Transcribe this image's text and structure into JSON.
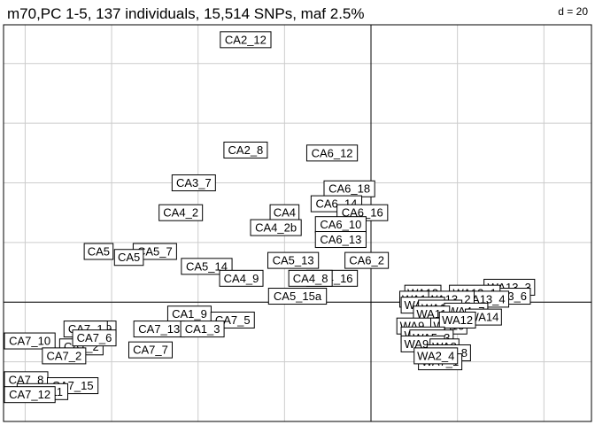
{
  "chart_data": {
    "type": "scatter",
    "title": "m70,PC 1-5, 137 individuals, 15,514 SNPs, maf 2.5%",
    "grid_label": "d = 20",
    "grid": true,
    "xlim": [
      -85,
      51
    ],
    "ylim": [
      -40,
      93
    ],
    "points": [
      {
        "label": "CA2_12",
        "x": -29,
        "y": 88
      },
      {
        "label": "CA2_8",
        "x": -29,
        "y": 51
      },
      {
        "label": "CA6_12",
        "x": -9,
        "y": 50
      },
      {
        "label": "CA3_7",
        "x": -41,
        "y": 40
      },
      {
        "label": "CA6_18",
        "x": -5,
        "y": 38
      },
      {
        "label": "CA6_14",
        "x": -8,
        "y": 33
      },
      {
        "label": "CA4_2",
        "x": -44,
        "y": 30
      },
      {
        "label": "CA4",
        "x": -20,
        "y": 30
      },
      {
        "label": "CA6_16",
        "x": -2,
        "y": 30
      },
      {
        "label": "CA6_10",
        "x": -7,
        "y": 26
      },
      {
        "label": "CA4_2b",
        "x": -22,
        "y": 25
      },
      {
        "label": "CA6_13",
        "x": -7,
        "y": 21
      },
      {
        "label": "CA5",
        "x": -63,
        "y": 17
      },
      {
        "label": "CA5_7",
        "x": -50,
        "y": 17
      },
      {
        "label": "CA5",
        "x": -56,
        "y": 15
      },
      {
        "label": "CA5_13",
        "x": -18,
        "y": 14
      },
      {
        "label": "CA6_2",
        "x": -1,
        "y": 14
      },
      {
        "label": "CA5_14",
        "x": -38,
        "y": 12
      },
      {
        "label": "CA4_9",
        "x": -30,
        "y": 8
      },
      {
        "label": "CA4_16",
        "x": -9,
        "y": 8
      },
      {
        "label": "CA4_8",
        "x": -14,
        "y": 8
      },
      {
        "label": "CA5_15a",
        "x": -17,
        "y": 2
      },
      {
        "label": "WA13_3",
        "x": 32,
        "y": 5
      },
      {
        "label": "WA13",
        "x": 12,
        "y": 3
      },
      {
        "label": "WA13_6",
        "x": 31,
        "y": 2
      },
      {
        "label": "WA13_1",
        "x": 24,
        "y": 3
      },
      {
        "label": "WA13_4",
        "x": 26,
        "y": 1
      },
      {
        "label": "WA13_2",
        "x": 18,
        "y": 1
      },
      {
        "label": "WA1",
        "x": 10,
        "y": 1
      },
      {
        "label": "WA1_3",
        "x": 12,
        "y": -1
      },
      {
        "label": "WA1_5",
        "x": 16,
        "y": -2
      },
      {
        "label": "WA4_7",
        "x": 22,
        "y": -3
      },
      {
        "label": "WA14",
        "x": 26,
        "y": -5
      },
      {
        "label": "WA11",
        "x": 14,
        "y": -4
      },
      {
        "label": "WA9_8",
        "x": 11,
        "y": -8
      },
      {
        "label": "WA10",
        "x": 18,
        "y": -8
      },
      {
        "label": "WA12",
        "x": 20,
        "y": -6
      },
      {
        "label": "WA9_5",
        "x": 12,
        "y": -11
      },
      {
        "label": "WA5_3",
        "x": 14,
        "y": -12
      },
      {
        "label": "WA9_2",
        "x": 12,
        "y": -14
      },
      {
        "label": "WA8",
        "x": 17,
        "y": -15
      },
      {
        "label": "WA6_8",
        "x": 18,
        "y": -17
      },
      {
        "label": "WA7_1",
        "x": 16,
        "y": -20
      },
      {
        "label": "WA2_4",
        "x": 15,
        "y": -18
      },
      {
        "label": "CA1_9",
        "x": -42,
        "y": -4
      },
      {
        "label": "CA7_5",
        "x": -32,
        "y": -6
      },
      {
        "label": "CA7_9",
        "x": -64,
        "y": -9
      },
      {
        "label": "CA7_13",
        "x": -49,
        "y": -9
      },
      {
        "label": "CA1_3",
        "x": -39,
        "y": -9
      },
      {
        "label": "CA7_1",
        "x": -66,
        "y": -9
      },
      {
        "label": "CA7_10",
        "x": -81,
        "y": -13
      },
      {
        "label": "CA1_2",
        "x": -67,
        "y": -15
      },
      {
        "label": "CA7_7",
        "x": -51,
        "y": -16
      },
      {
        "label": "CA7_6",
        "x": -64,
        "y": -12
      },
      {
        "label": "CA7_2",
        "x": -71,
        "y": -18
      },
      {
        "label": "CA7_8",
        "x": -80,
        "y": -26
      },
      {
        "label": "CA7_15",
        "x": -69,
        "y": -28
      },
      {
        "label": "CA7_11",
        "x": -76,
        "y": -30
      },
      {
        "label": "CA7_12",
        "x": -84,
        "y": -31
      }
    ]
  }
}
